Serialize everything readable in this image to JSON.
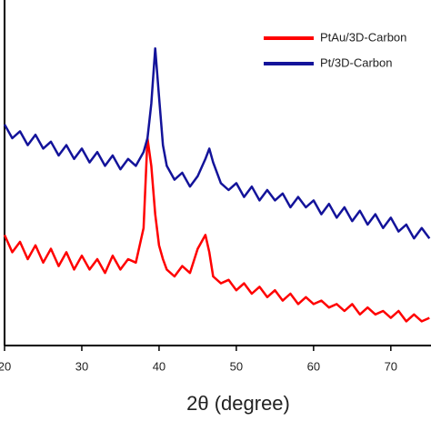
{
  "chart_data": {
    "type": "line",
    "xlabel": "2θ (degree)",
    "x": [
      20,
      21,
      22,
      23,
      24,
      25,
      26,
      27,
      28,
      29,
      30,
      31,
      32,
      33,
      34,
      35,
      36,
      37,
      38,
      38.5,
      39,
      39.5,
      40,
      40.5,
      41,
      42,
      43,
      44,
      45,
      46,
      46.5,
      47,
      48,
      49,
      50,
      51,
      52,
      53,
      54,
      55,
      56,
      57,
      58,
      59,
      60,
      61,
      62,
      63,
      64,
      65,
      66,
      67,
      68,
      69,
      70,
      71,
      72,
      73,
      74,
      75
    ],
    "series": [
      {
        "name": "PtAu/3D-Carbon",
        "color": "#ff0000",
        "values": [
          32,
          27,
          30,
          25,
          29,
          24,
          28,
          23,
          27,
          22,
          26,
          22,
          25,
          21,
          26,
          22,
          25,
          24,
          34,
          60,
          52,
          38,
          29,
          25,
          22,
          20,
          23,
          21,
          28,
          32,
          27,
          20,
          18,
          19,
          16,
          18,
          15,
          17,
          14,
          16,
          13,
          15,
          12,
          14,
          12,
          13,
          11,
          12,
          10,
          12,
          9,
          11,
          9,
          10,
          8,
          10,
          7,
          9,
          7,
          8
        ]
      },
      {
        "name": "Pt/3D-Carbon",
        "color": "#13139a",
        "values": [
          64,
          60,
          62,
          58,
          61,
          57,
          59,
          55,
          58,
          54,
          57,
          53,
          56,
          52,
          55,
          51,
          54,
          52,
          56,
          60,
          70,
          86,
          72,
          58,
          52,
          48,
          50,
          46,
          49,
          54,
          57,
          53,
          47,
          45,
          47,
          43,
          46,
          42,
          45,
          42,
          44,
          40,
          43,
          40,
          42,
          38,
          41,
          37,
          40,
          36,
          39,
          35,
          38,
          34,
          37,
          33,
          35,
          31,
          34,
          31
        ]
      }
    ],
    "xlim": [
      20,
      75.2
    ],
    "xticks": [
      20,
      30,
      40,
      50,
      60,
      70
    ],
    "ylim": [
      0,
      100
    ],
    "legend": "upper right"
  }
}
